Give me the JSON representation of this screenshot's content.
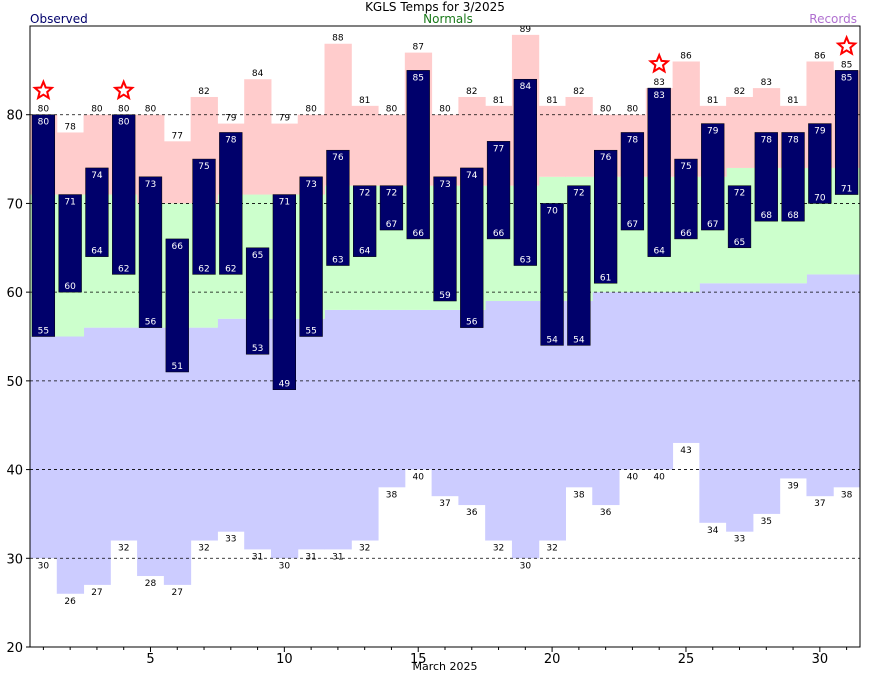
{
  "chart_data": {
    "type": "bar",
    "title": "KGLS Temps for 3/2025",
    "legend": [
      "Observed",
      "Normals",
      "Records"
    ],
    "xlabel": "March 2025",
    "ylabel": "",
    "ylim": [
      20,
      90
    ],
    "yticks": [
      20,
      30,
      40,
      50,
      60,
      70,
      80
    ],
    "xticks": [
      5,
      10,
      15,
      20,
      25,
      30
    ],
    "grid": true,
    "days": [
      1,
      2,
      3,
      4,
      5,
      6,
      7,
      8,
      9,
      10,
      11,
      12,
      13,
      14,
      15,
      16,
      17,
      18,
      19,
      20,
      21,
      22,
      23,
      24,
      25,
      26,
      27,
      28,
      29,
      30,
      31
    ],
    "observed_high": [
      80,
      71,
      74,
      80,
      73,
      66,
      75,
      78,
      65,
      71,
      73,
      76,
      72,
      72,
      85,
      73,
      74,
      77,
      84,
      70,
      72,
      76,
      78,
      83,
      75,
      79,
      72,
      78,
      78,
      79,
      85
    ],
    "observed_low": [
      55,
      60,
      64,
      62,
      56,
      51,
      62,
      62,
      53,
      49,
      55,
      63,
      64,
      67,
      66,
      59,
      56,
      66,
      63,
      54,
      54,
      61,
      67,
      64,
      66,
      67,
      65,
      68,
      68,
      70,
      71
    ],
    "normal_high": [
      71,
      71,
      71,
      71,
      70,
      70,
      70,
      71,
      71,
      71,
      71,
      72,
      72,
      72,
      72,
      72,
      72,
      72,
      72,
      73,
      73,
      73,
      73,
      73,
      73,
      73,
      74,
      74,
      74,
      74,
      74
    ],
    "normal_low": [
      55,
      55,
      56,
      56,
      56,
      56,
      56,
      57,
      57,
      57,
      57,
      58,
      58,
      58,
      58,
      58,
      58,
      59,
      59,
      59,
      59,
      60,
      60,
      60,
      60,
      61,
      61,
      61,
      61,
      62,
      62
    ],
    "record_high": [
      80,
      78,
      80,
      80,
      80,
      77,
      82,
      79,
      84,
      79,
      80,
      88,
      81,
      80,
      87,
      80,
      82,
      81,
      89,
      81,
      82,
      80,
      80,
      83,
      86,
      81,
      82,
      83,
      81,
      86,
      85
    ],
    "record_low": [
      30,
      26,
      27,
      32,
      28,
      27,
      32,
      33,
      31,
      30,
      31,
      31,
      32,
      38,
      40,
      37,
      36,
      32,
      30,
      32,
      38,
      36,
      40,
      40,
      43,
      34,
      33,
      35,
      39,
      37,
      38
    ],
    "record_set_high_days": [
      1,
      4,
      24,
      31
    ],
    "colors": {
      "observed": "#00006b",
      "normal": "#ccffcc",
      "record_high": "#ffcccc",
      "record_low": "#ccccff",
      "star": "#ff0000"
    }
  }
}
